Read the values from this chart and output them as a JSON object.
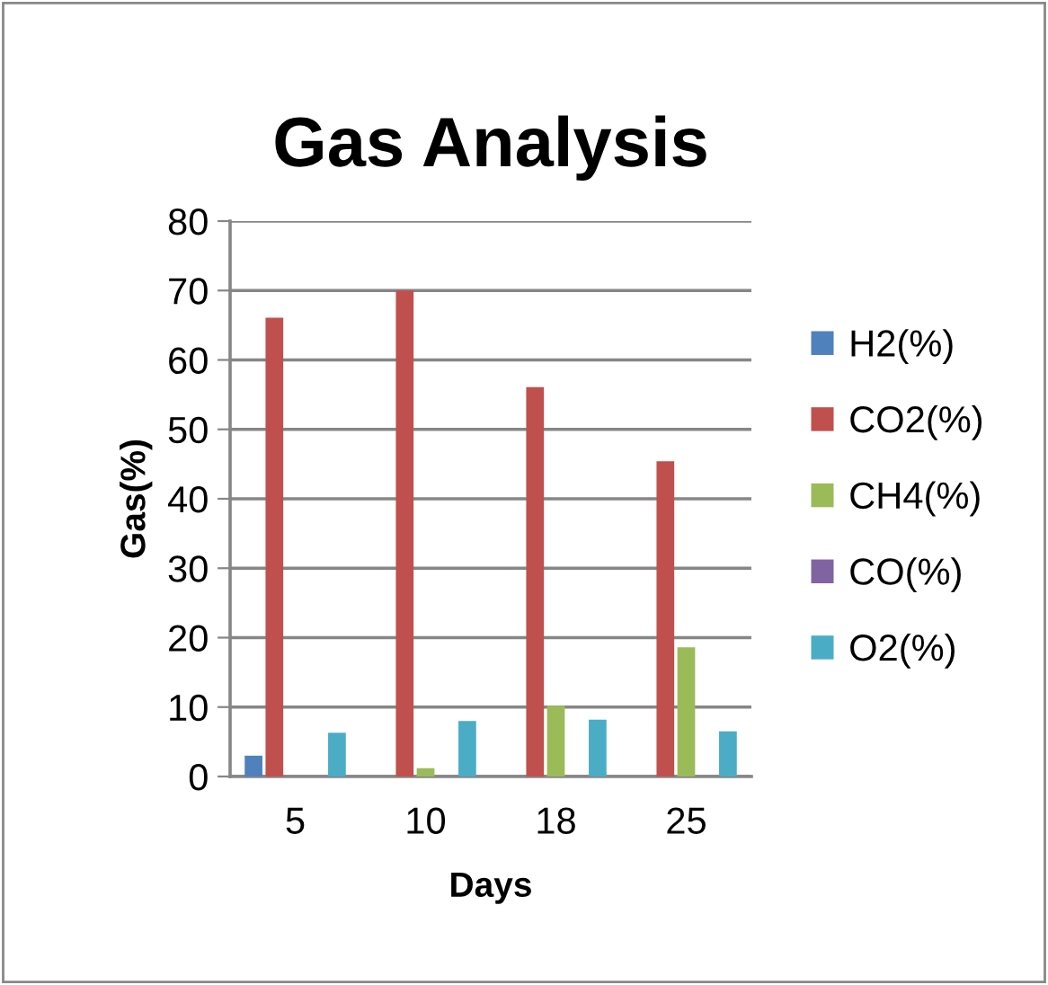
{
  "chart_data": {
    "type": "bar",
    "title": "Gas Analysis",
    "xlabel": "Days",
    "ylabel": "Gas(%)",
    "categories": [
      "5",
      "10",
      "18",
      "25"
    ],
    "series": [
      {
        "name": "H2(%)",
        "color": "#4f81bd",
        "values": [
          3.0,
          0,
          0,
          0
        ]
      },
      {
        "name": "CO2(%)",
        "color": "#c0504d",
        "values": [
          66.1,
          70.0,
          56.1,
          45.4
        ]
      },
      {
        "name": "CH4(%)",
        "color": "#9bbb59",
        "values": [
          0,
          1.2,
          10.2,
          18.6
        ]
      },
      {
        "name": "CO(%)",
        "color": "#8064a2",
        "values": [
          0,
          0,
          0,
          0
        ]
      },
      {
        "name": "O2(%)",
        "color": "#4bacc6",
        "values": [
          6.3,
          8.0,
          8.2,
          6.5
        ]
      }
    ],
    "ylim": [
      0,
      80
    ],
    "yticks": [
      0,
      10,
      20,
      30,
      40,
      50,
      60,
      70,
      80
    ],
    "grid": "y",
    "legend": "right"
  }
}
